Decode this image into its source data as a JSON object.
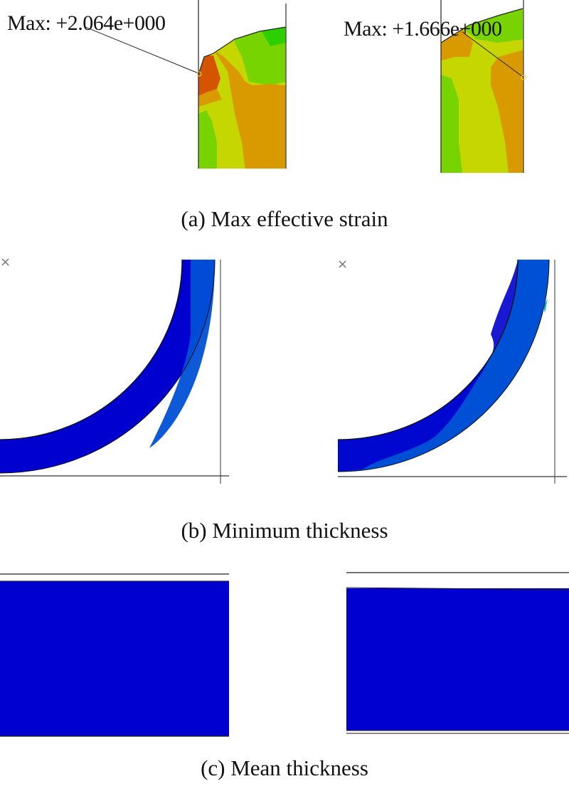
{
  "panel_a": {
    "caption": "(a) Max effective strain",
    "left_label": "Max: +2.064e+000",
    "right_label": "Max: +1.666e+000"
  },
  "panel_b": {
    "caption": "(b) Minimum thickness",
    "marker": "×"
  },
  "panel_c": {
    "caption": "(c) Mean thickness"
  },
  "colors": {
    "red_orange": "#d55400",
    "orange": "#d99a00",
    "yellow_green": "#c6d600",
    "green": "#78d400",
    "bright_green": "#2ccf00",
    "dark_blue": "#0000cf",
    "mid_blue": "#0050d6",
    "cyan": "#00b8e0"
  }
}
